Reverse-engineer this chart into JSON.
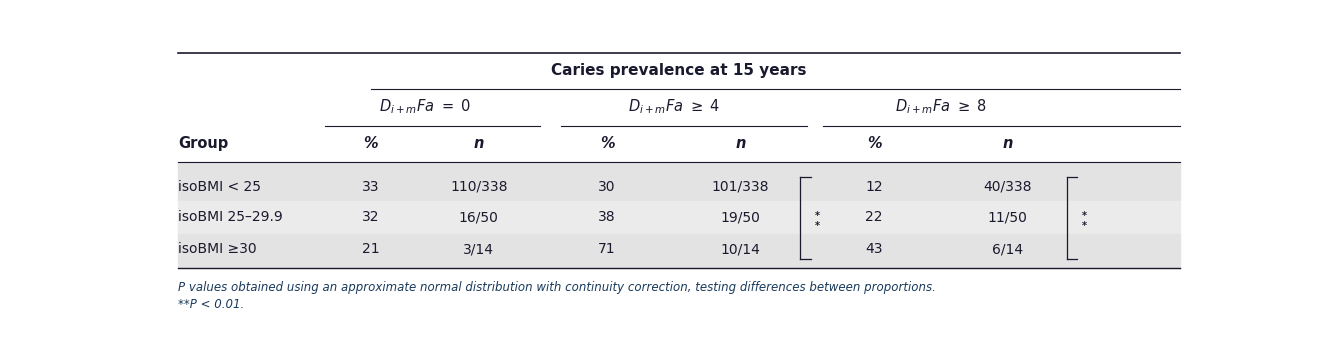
{
  "title": "Caries prevalence at 15 years",
  "sub_labels": [
    "$D_{i+m}Fa = 0$",
    "$D_{i+m}Fa \\geq 4$",
    "$D_{i+m}Fa \\geq 8$"
  ],
  "col_headers": [
    "%",
    "n",
    "%",
    "n",
    "%",
    "n"
  ],
  "row_header": "Group",
  "rows": [
    {
      "group": "isoBMI < 25",
      "vals": [
        "33",
        "110/338",
        "30",
        "101/338",
        "12",
        "40/338"
      ]
    },
    {
      "group": "isoBMI 25–29.9",
      "vals": [
        "32",
        "16/50",
        "38",
        "19/50",
        "22",
        "11/50"
      ]
    },
    {
      "group": "isoBMI ≥30",
      "vals": [
        "21",
        "3/14",
        "71",
        "10/14",
        "43",
        "6/14"
      ]
    }
  ],
  "footnote1": "P values obtained using an approximate normal distribution with continuity correction, testing differences between proportions.",
  "footnote2": "**P < 0.01.",
  "bg_row0": "#e3e3e3",
  "bg_row1": "#ebebeb",
  "bg_row2": "#e3e3e3",
  "text_color": "#1a1a2e",
  "footnote_color": "#1a3a5c"
}
